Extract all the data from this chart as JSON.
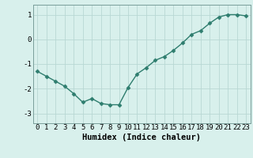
{
  "x": [
    0,
    1,
    2,
    3,
    4,
    5,
    6,
    7,
    8,
    9,
    10,
    11,
    12,
    13,
    14,
    15,
    16,
    17,
    18,
    19,
    20,
    21,
    22,
    23
  ],
  "y": [
    -1.3,
    -1.5,
    -1.7,
    -1.9,
    -2.2,
    -2.55,
    -2.4,
    -2.6,
    -2.65,
    -2.65,
    -1.95,
    -1.4,
    -1.15,
    -0.85,
    -0.7,
    -0.45,
    -0.15,
    0.2,
    0.35,
    0.65,
    0.9,
    1.0,
    1.0,
    0.95
  ],
  "line_color": "#2e7d6e",
  "marker": "D",
  "marker_size": 2.5,
  "background_color": "#d8f0ec",
  "grid_color": "#b8d8d4",
  "xlabel": "Humidex (Indice chaleur)",
  "xlim": [
    -0.5,
    23.5
  ],
  "ylim": [
    -3.4,
    1.4
  ],
  "yticks": [
    -3,
    -2,
    -1,
    0,
    1
  ],
  "xticks": [
    0,
    1,
    2,
    3,
    4,
    5,
    6,
    7,
    8,
    9,
    10,
    11,
    12,
    13,
    14,
    15,
    16,
    17,
    18,
    19,
    20,
    21,
    22,
    23
  ],
  "tick_fontsize": 6.5,
  "xlabel_fontsize": 7.5,
  "line_width": 1.0
}
